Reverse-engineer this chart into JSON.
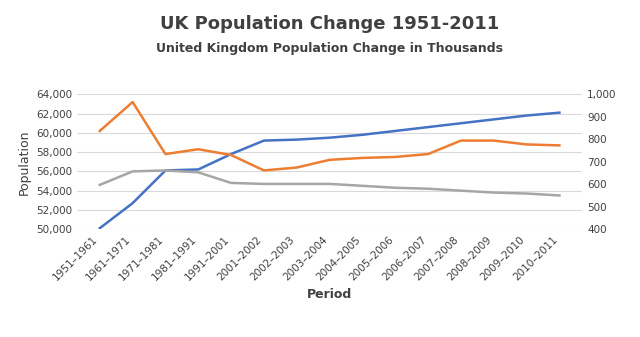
{
  "title": "UK Population Change 1951-2011",
  "subtitle": "United Kingdom Population Change in Thousands",
  "xlabel": "Period",
  "ylabel": "Population",
  "categories": [
    "1951–1961",
    "1961–1971",
    "1971–1981",
    "1981–1991",
    "1991–2001",
    "2001–2002",
    "2002–2003",
    "2003–2004",
    "2004–2005",
    "2005–2006",
    "2006–2007",
    "2007–2008",
    "2008–2009",
    "2009–2010",
    "2010–2011"
  ],
  "blue_line": [
    50100,
    52700,
    56100,
    56200,
    57800,
    59200,
    59300,
    59500,
    59800,
    60200,
    60600,
    61000,
    61400,
    61800,
    62100
  ],
  "orange_line": [
    60200,
    63200,
    57800,
    58300,
    57700,
    56100,
    56400,
    57200,
    57400,
    57500,
    57800,
    59200,
    59200,
    58800,
    58700
  ],
  "gray_line": [
    54600,
    56000,
    56100,
    55900,
    54800,
    54700,
    54700,
    54700,
    54500,
    54300,
    54200,
    54000,
    53800,
    53700,
    53500
  ],
  "blue_color": "#4472c4",
  "orange_color": "#ed7d31",
  "gray_color": "#a6a6a6",
  "ylim_left": [
    50000,
    64000
  ],
  "ylim_right": [
    400,
    1000
  ],
  "yticks_left": [
    50000,
    52000,
    54000,
    56000,
    58000,
    60000,
    62000,
    64000
  ],
  "yticks_right": [
    400,
    500,
    600,
    700,
    800,
    900,
    1000
  ],
  "background_color": "#ffffff",
  "title_fontsize": 13,
  "subtitle_fontsize": 9,
  "axis_label_fontsize": 9,
  "tick_fontsize": 7.5,
  "line_width": 1.8,
  "grid_color": "#d9d9d9",
  "text_color": "#404040"
}
